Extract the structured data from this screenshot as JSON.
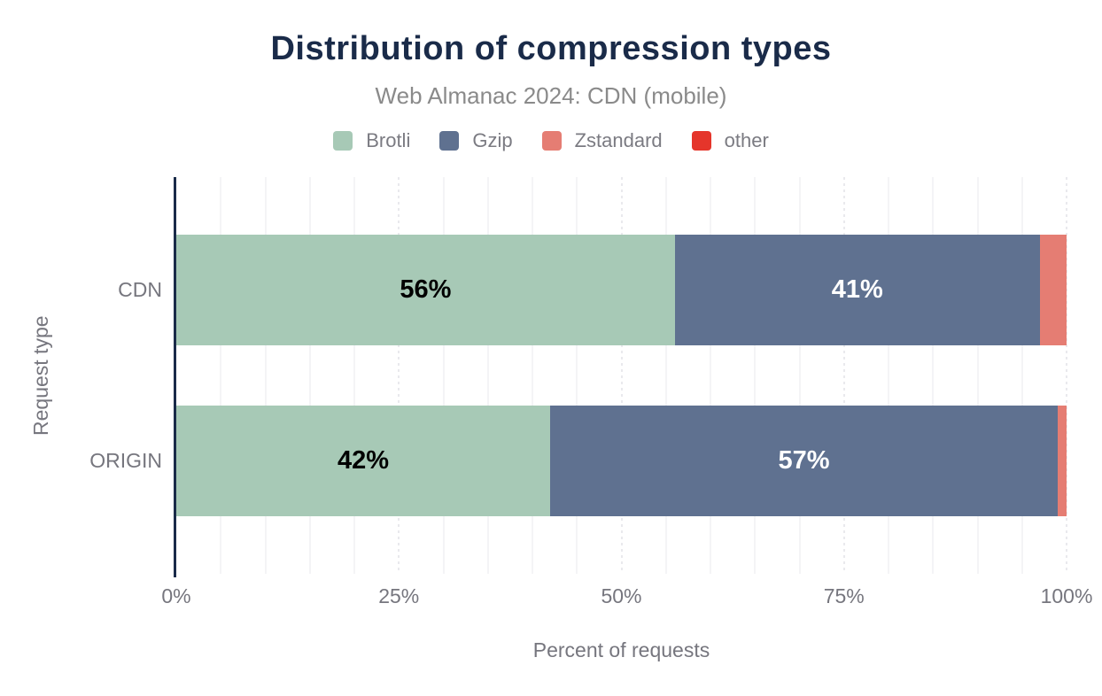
{
  "chart": {
    "title": "Distribution of compression types",
    "subtitle": "Web Almanac 2024: CDN (mobile)",
    "y_axis_title": "Request type",
    "x_axis_title": "Percent of requests"
  },
  "chart_data": {
    "type": "bar",
    "orientation": "horizontal",
    "stacked": true,
    "title": "Distribution of compression types",
    "subtitle": "Web Almanac 2024: CDN (mobile)",
    "xlabel": "Percent of requests",
    "ylabel": "Request type",
    "xlim": [
      0,
      100
    ],
    "categories": [
      "CDN",
      "ORIGIN"
    ],
    "series": [
      {
        "name": "Brotli",
        "color": "#a7c9b6",
        "values": [
          56,
          42
        ],
        "data_labels": [
          "56%",
          "42%"
        ],
        "label_color": "#000000"
      },
      {
        "name": "Gzip",
        "color": "#5f7190",
        "values": [
          41,
          57
        ],
        "data_labels": [
          "41%",
          "57%"
        ],
        "label_color": "#ffffff"
      },
      {
        "name": "Zstandard",
        "color": "#e57d73",
        "values": [
          3,
          1
        ],
        "data_labels": [
          "",
          ""
        ],
        "label_color": "#000000"
      },
      {
        "name": "other",
        "color": "#e5352b",
        "values": [
          0,
          0
        ],
        "data_labels": [
          "",
          ""
        ],
        "label_color": "#000000"
      }
    ],
    "xticks": [
      {
        "value": 0,
        "label": "0%"
      },
      {
        "value": 25,
        "label": "25%"
      },
      {
        "value": 50,
        "label": "50%"
      },
      {
        "value": 75,
        "label": "75%"
      },
      {
        "value": 100,
        "label": "100%"
      }
    ],
    "grid": {
      "minor_step": 5,
      "major_step": 25
    },
    "legend_position": "top"
  },
  "colors": {
    "title": "#1a2b49",
    "subtitle": "#8a8a8a",
    "axis_text": "#76767e",
    "legend_text": "#7b7b82",
    "axis_line": "#1a2b49",
    "grid_minor": "#f4f4f6",
    "grid_major": "#e9e9ed",
    "background": "#ffffff"
  }
}
